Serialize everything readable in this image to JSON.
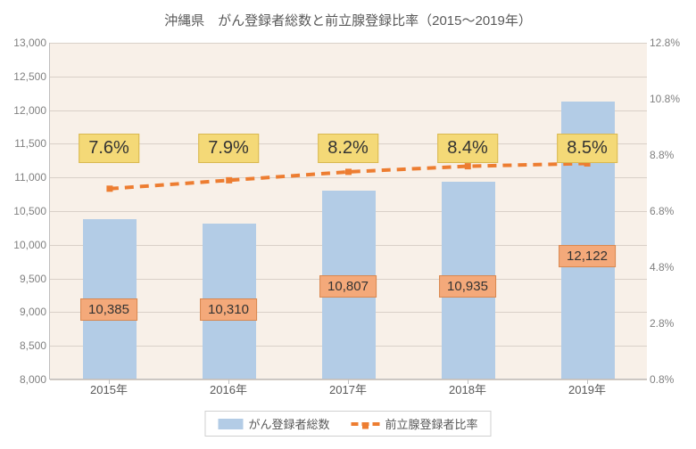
{
  "chart": {
    "type": "bar+line",
    "title": "沖縄県　がん登録者総数と前立腺登録比率（2015～2019年）",
    "title_fontsize": 15,
    "title_color": "#595959",
    "background_color": "#ffffff",
    "plot_background_color": "#f8f0e8",
    "grid_color": "#d9d0c8",
    "axis_color": "#bfbfbf",
    "categories": [
      "2015年",
      "2016年",
      "2017年",
      "2018年",
      "2019年"
    ],
    "bar": {
      "series_name": "がん登録者総数",
      "values": [
        10385,
        10310,
        10807,
        10935,
        12122
      ],
      "labels": [
        "10,385",
        "10,310",
        "10,807",
        "10,935",
        "12,122"
      ],
      "color": "#b3cce6",
      "bar_width_ratio": 0.45,
      "label_bg": "#f4a97a",
      "label_border": "#d98850",
      "label_fontsize": 15
    },
    "line": {
      "series_name": "前立腺登録者比率",
      "values": [
        7.6,
        7.9,
        8.2,
        8.4,
        8.5
      ],
      "labels": [
        "7.6%",
        "7.9%",
        "8.2%",
        "8.4%",
        "8.5%"
      ],
      "color": "#ed7d31",
      "dash": true,
      "line_width": 4,
      "marker_size": 7,
      "label_bg": "#f4d977",
      "label_border": "#d9b850",
      "label_fontsize": 20
    },
    "y_left": {
      "min": 8000,
      "max": 13000,
      "step": 500,
      "tick_labels": [
        "8,000",
        "8,500",
        "9,000",
        "9,500",
        "10,000",
        "10,500",
        "11,000",
        "11,500",
        "12,000",
        "12,500",
        "13,000"
      ],
      "label_color": "#808080",
      "label_fontsize": 12
    },
    "y_right": {
      "min": 0.8,
      "max": 12.8,
      "step": 2.0,
      "tick_labels": [
        "0.8%",
        "2.8%",
        "4.8%",
        "6.8%",
        "8.8%",
        "10.8%",
        "12.8%"
      ],
      "label_color": "#808080",
      "label_fontsize": 12
    },
    "legend": {
      "items": [
        "がん登録者総数",
        "前立腺登録者比率"
      ]
    }
  }
}
